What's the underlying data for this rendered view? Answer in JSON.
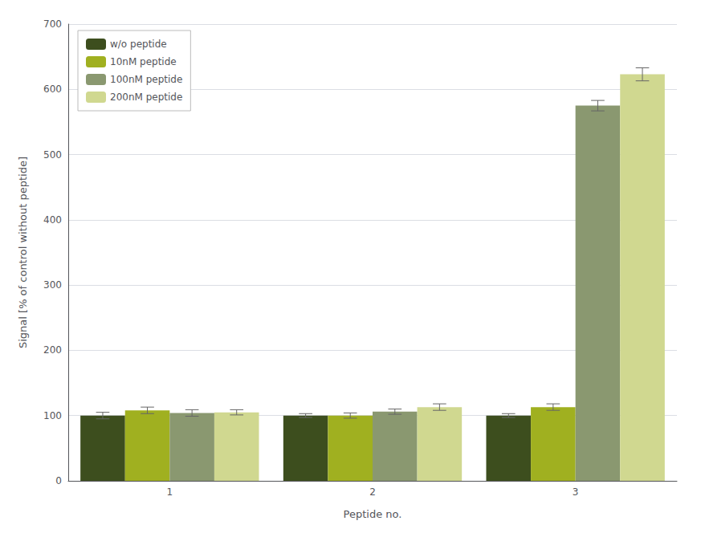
{
  "chart_data": {
    "type": "bar",
    "categories": [
      "1",
      "2",
      "3"
    ],
    "series": [
      {
        "name": "w/o peptide",
        "color": "#3d4e1e",
        "values": [
          100,
          100,
          100
        ],
        "errors": [
          5,
          3,
          3
        ]
      },
      {
        "name": "10nM peptide",
        "color": "#a0b020",
        "values": [
          108,
          100,
          113
        ],
        "errors": [
          5,
          4,
          5
        ]
      },
      {
        "name": "100nM peptide",
        "color": "#8a9870",
        "values": [
          104,
          106,
          575
        ],
        "errors": [
          5,
          4,
          8
        ]
      },
      {
        "name": "200nM peptide",
        "color": "#d0d890",
        "values": [
          105,
          113,
          623
        ],
        "errors": [
          4,
          5,
          10
        ]
      }
    ],
    "xlabel": "Peptide no.",
    "ylabel": "Signal [% of control without peptide]",
    "ylim": [
      0,
      700
    ],
    "yticks": [
      0,
      100,
      200,
      300,
      400,
      500,
      600,
      700
    ],
    "grid": true,
    "legend": "upper left"
  }
}
